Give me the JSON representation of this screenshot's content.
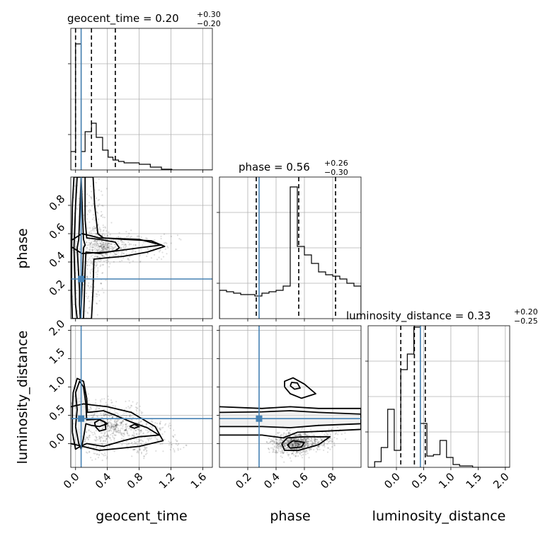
{
  "chart_data": {
    "type": "corner",
    "parameters": [
      "geocent_time",
      "phase",
      "luminosity_distance"
    ],
    "truths": {
      "geocent_time": 0.07,
      "phase": 0.28,
      "luminosity_distance": 0.44
    },
    "truth_color": "#4682b4",
    "grid": true,
    "panels": [
      {
        "kind": "histogram",
        "param": "geocent_time",
        "title_name": "geocent_time",
        "title_value": "0.20",
        "title_plus": "+0.30",
        "title_minus": "−0.20",
        "xlim": [
          -0.06,
          1.72
        ],
        "ymax": 1.0,
        "quantiles": [
          0.0,
          0.2,
          0.5
        ],
        "hist_edges": [
          -0.06,
          0.0,
          0.07,
          0.12,
          0.2,
          0.26,
          0.34,
          0.41,
          0.47,
          0.54,
          0.61,
          0.68,
          0.74,
          0.8,
          0.88,
          0.94,
          1.01,
          1.08,
          1.14,
          1.21,
          1.28,
          1.34,
          1.42,
          1.49,
          1.56,
          1.63,
          1.72
        ],
        "hist_values": [
          0.13,
          0.89,
          0.13,
          0.27,
          0.33,
          0.23,
          0.14,
          0.09,
          0.07,
          0.06,
          0.05,
          0.05,
          0.05,
          0.04,
          0.04,
          0.02,
          0.02,
          0.005,
          0.005,
          0.0,
          0.0,
          0.0,
          0.0,
          0.0,
          0.0,
          0.0
        ]
      },
      {
        "kind": "histogram",
        "param": "phase",
        "title_name": "phase",
        "title_value": "0.56",
        "title_plus": "+0.26",
        "title_minus": "−0.30",
        "xlim": [
          0.0,
          1.0
        ],
        "ymax": 1.0,
        "quantiles": [
          0.26,
          0.56,
          0.82
        ],
        "hist_edges": [
          0.0,
          0.05,
          0.1,
          0.15,
          0.2,
          0.25,
          0.3,
          0.35,
          0.4,
          0.45,
          0.5,
          0.55,
          0.6,
          0.65,
          0.7,
          0.75,
          0.8,
          0.85,
          0.9,
          0.95,
          1.0
        ],
        "hist_values": [
          0.2,
          0.19,
          0.18,
          0.17,
          0.17,
          0.16,
          0.18,
          0.19,
          0.2,
          0.23,
          0.93,
          0.51,
          0.45,
          0.39,
          0.33,
          0.31,
          0.3,
          0.28,
          0.25,
          0.23
        ]
      },
      {
        "kind": "histogram",
        "param": "luminosity_distance",
        "title_name": "luminosity_distance",
        "title_value": "0.33",
        "title_plus": "+0.20",
        "title_minus": "−0.25",
        "xlim": [
          -0.52,
          2.08
        ],
        "ymax": 1.0,
        "quantiles": [
          0.08,
          0.33,
          0.53
        ],
        "hist_edges": [
          -0.52,
          -0.4,
          -0.28,
          -0.16,
          -0.04,
          0.08,
          0.2,
          0.32,
          0.44,
          0.56,
          0.68,
          0.8,
          0.92,
          1.04,
          1.16,
          1.28,
          1.4,
          1.52,
          1.64,
          1.76,
          1.88,
          2.08
        ],
        "hist_values": [
          0.0,
          0.04,
          0.14,
          0.41,
          0.12,
          0.69,
          0.8,
          0.99,
          0.31,
          0.08,
          0.09,
          0.19,
          0.07,
          0.02,
          0.01,
          0.01,
          0.0,
          0.0,
          0.0,
          0.0,
          0.0
        ]
      },
      {
        "kind": "2d",
        "x_param": "geocent_time",
        "y_param": "phase",
        "xlim": [
          -0.06,
          1.72
        ],
        "ylim": [
          0.0,
          1.0
        ],
        "contours": [
          [
            [
              0.02,
              0.5
            ],
            [
              0.03,
              0.4
            ],
            [
              0.04,
              0.3
            ],
            [
              0.05,
              0.2
            ],
            [
              0.05,
              0.1
            ],
            [
              0.06,
              0.0
            ],
            [
              0.07,
              0.05
            ],
            [
              0.08,
              0.2
            ],
            [
              0.09,
              0.35
            ],
            [
              0.1,
              0.5
            ],
            [
              0.12,
              0.52
            ],
            [
              0.1,
              0.56
            ],
            [
              0.09,
              0.7
            ],
            [
              0.08,
              0.85
            ],
            [
              0.07,
              1.0
            ],
            [
              0.06,
              0.85
            ],
            [
              0.05,
              0.7
            ],
            [
              0.04,
              0.56
            ],
            [
              0.02,
              0.5
            ]
          ],
          [
            [
              -0.02,
              0.5
            ],
            [
              -0.01,
              0.3
            ],
            [
              0.0,
              0.1
            ],
            [
              0.02,
              0.0
            ],
            [
              0.1,
              0.0
            ],
            [
              0.11,
              0.15
            ],
            [
              0.12,
              0.35
            ],
            [
              0.13,
              0.47
            ],
            [
              0.3,
              0.46
            ],
            [
              0.5,
              0.48
            ],
            [
              0.55,
              0.5
            ],
            [
              0.5,
              0.54
            ],
            [
              0.3,
              0.56
            ],
            [
              0.14,
              0.57
            ],
            [
              0.12,
              0.7
            ],
            [
              0.12,
              1.0
            ],
            [
              0.02,
              1.0
            ],
            [
              0.0,
              0.8
            ],
            [
              -0.01,
              0.65
            ],
            [
              -0.02,
              0.5
            ]
          ],
          [
            [
              -0.05,
              0.48
            ],
            [
              -0.05,
              0.2
            ],
            [
              -0.04,
              0.0
            ],
            [
              0.2,
              0.0
            ],
            [
              0.22,
              0.2
            ],
            [
              0.23,
              0.42
            ],
            [
              0.4,
              0.43
            ],
            [
              0.6,
              0.44
            ],
            [
              0.9,
              0.47
            ],
            [
              1.12,
              0.51
            ],
            [
              0.95,
              0.55
            ],
            [
              0.6,
              0.56
            ],
            [
              0.35,
              0.57
            ],
            [
              0.28,
              0.6
            ],
            [
              0.24,
              0.8
            ],
            [
              0.22,
              1.0
            ],
            [
              -0.02,
              1.0
            ],
            [
              -0.04,
              0.8
            ],
            [
              -0.05,
              0.48
            ]
          ],
          [
            [
              -0.06,
              0.51
            ],
            [
              0.08,
              0.46
            ],
            [
              0.4,
              0.47
            ],
            [
              0.8,
              0.5
            ],
            [
              1.08,
              0.52
            ],
            [
              0.8,
              0.56
            ],
            [
              0.3,
              0.57
            ],
            [
              0.08,
              0.6
            ],
            [
              -0.06,
              0.55
            ]
          ]
        ]
      },
      {
        "kind": "2d",
        "x_param": "geocent_time",
        "y_param": "luminosity_distance",
        "xlim": [
          -0.06,
          1.72
        ],
        "ylim": [
          -0.42,
          2.08
        ],
        "contours": [
          [
            [
              0.0,
              0.3
            ],
            [
              0.04,
              0.0
            ],
            [
              0.07,
              -0.1
            ],
            [
              0.1,
              0.1
            ],
            [
              0.13,
              0.35
            ],
            [
              0.2,
              0.32
            ],
            [
              0.3,
              0.3
            ],
            [
              0.4,
              0.35
            ],
            [
              0.3,
              0.43
            ],
            [
              0.14,
              0.42
            ],
            [
              0.13,
              0.7
            ],
            [
              0.1,
              1.0
            ],
            [
              0.05,
              1.1
            ],
            [
              0.0,
              0.9
            ],
            [
              0.02,
              0.6
            ],
            [
              0.0,
              0.3
            ]
          ],
          [
            [
              -0.04,
              0.2
            ],
            [
              0.0,
              -0.1
            ],
            [
              0.06,
              -0.05
            ],
            [
              0.14,
              0.0
            ],
            [
              0.35,
              -0.05
            ],
            [
              0.6,
              0.05
            ],
            [
              0.8,
              0.12
            ],
            [
              1.05,
              0.15
            ],
            [
              0.9,
              0.28
            ],
            [
              0.7,
              0.38
            ],
            [
              0.5,
              0.5
            ],
            [
              0.35,
              0.58
            ],
            [
              0.15,
              0.55
            ],
            [
              0.14,
              0.8
            ],
            [
              0.1,
              1.1
            ],
            [
              0.02,
              1.15
            ],
            [
              -0.03,
              0.9
            ],
            [
              -0.04,
              0.6
            ],
            [
              -0.04,
              0.2
            ]
          ],
          [
            [
              -0.06,
              0.0
            ],
            [
              0.3,
              -0.12
            ],
            [
              0.8,
              -0.05
            ],
            [
              1.1,
              0.05
            ],
            [
              1.0,
              0.3
            ],
            [
              0.7,
              0.55
            ],
            [
              0.4,
              0.65
            ],
            [
              0.1,
              0.7
            ],
            [
              -0.06,
              0.65
            ]
          ],
          [
            [
              0.25,
              0.3
            ],
            [
              0.3,
              0.22
            ],
            [
              0.38,
              0.25
            ],
            [
              0.37,
              0.38
            ],
            [
              0.3,
              0.42
            ],
            [
              0.24,
              0.37
            ],
            [
              0.25,
              0.3
            ]
          ],
          [
            [
              0.68,
              0.3
            ],
            [
              0.74,
              0.27
            ],
            [
              0.8,
              0.3
            ],
            [
              0.74,
              0.34
            ],
            [
              0.68,
              0.3
            ]
          ]
        ]
      },
      {
        "kind": "2d",
        "x_param": "phase",
        "y_param": "luminosity_distance",
        "xlim": [
          0.0,
          1.0
        ],
        "ylim": [
          -0.42,
          2.08
        ],
        "contours": [
          [
            [
              0.0,
              0.3
            ],
            [
              0.3,
              0.3
            ],
            [
              0.5,
              0.28
            ],
            [
              0.7,
              0.32
            ],
            [
              1.0,
              0.35
            ],
            [
              1.0,
              0.52
            ],
            [
              0.7,
              0.55
            ],
            [
              0.5,
              0.58
            ],
            [
              0.3,
              0.56
            ],
            [
              0.0,
              0.55
            ]
          ],
          [
            [
              0.0,
              0.15
            ],
            [
              0.3,
              0.15
            ],
            [
              0.45,
              0.1
            ],
            [
              0.55,
              0.2
            ],
            [
              0.75,
              0.22
            ],
            [
              1.0,
              0.25
            ],
            [
              1.0,
              0.62
            ],
            [
              0.7,
              0.62
            ],
            [
              0.5,
              0.65
            ],
            [
              0.3,
              0.62
            ],
            [
              0.0,
              0.65
            ]
          ],
          [
            [
              0.44,
              0.0
            ],
            [
              0.46,
              -0.12
            ],
            [
              0.56,
              -0.12
            ],
            [
              0.7,
              -0.02
            ],
            [
              0.78,
              0.12
            ],
            [
              0.6,
              0.12
            ],
            [
              0.48,
              0.1
            ],
            [
              0.44,
              0.0
            ]
          ],
          [
            [
              0.48,
              -0.02
            ],
            [
              0.5,
              -0.08
            ],
            [
              0.58,
              -0.06
            ],
            [
              0.6,
              0.02
            ],
            [
              0.52,
              0.05
            ],
            [
              0.48,
              -0.02
            ]
          ],
          [
            [
              0.46,
              1.0
            ],
            [
              0.5,
              0.88
            ],
            [
              0.58,
              0.8
            ],
            [
              0.68,
              0.88
            ],
            [
              0.6,
              1.05
            ],
            [
              0.52,
              1.16
            ],
            [
              0.46,
              1.1
            ],
            [
              0.46,
              1.0
            ]
          ],
          [
            [
              0.5,
              1.02
            ],
            [
              0.53,
              0.96
            ],
            [
              0.57,
              0.98
            ],
            [
              0.55,
              1.07
            ],
            [
              0.51,
              1.08
            ],
            [
              0.5,
              1.02
            ]
          ]
        ]
      }
    ],
    "xticks": {
      "geocent_time": {
        "values": [
          0.0,
          0.4,
          0.8,
          1.2,
          1.6
        ],
        "labels": [
          "0.0",
          "0.4",
          "0.8",
          "1.2",
          "1.6"
        ]
      },
      "phase": {
        "values": [
          0.2,
          0.4,
          0.6,
          0.8
        ],
        "labels": [
          "0.2",
          "0.4",
          "0.6",
          "0.8"
        ]
      },
      "luminosity_distance": {
        "values": [
          0.0,
          0.5,
          1.0,
          1.5,
          2.0
        ],
        "labels": [
          "0.0",
          "0.5",
          "1.0",
          "1.5",
          "2.0"
        ]
      }
    },
    "yticks": {
      "phase": {
        "values": [
          0.2,
          0.4,
          0.6,
          0.8
        ],
        "labels": [
          "0.2",
          "0.4",
          "0.6",
          "0.8"
        ]
      },
      "luminosity_distance": {
        "values": [
          0.0,
          0.5,
          1.0,
          1.5,
          2.0
        ],
        "labels": [
          "0.0",
          "0.5",
          "1.0",
          "1.5",
          "2.0"
        ]
      }
    },
    "xlabels": [
      "geocent_time",
      "phase",
      "luminosity_distance"
    ],
    "ylabels": [
      "phase",
      "luminosity_distance"
    ]
  }
}
